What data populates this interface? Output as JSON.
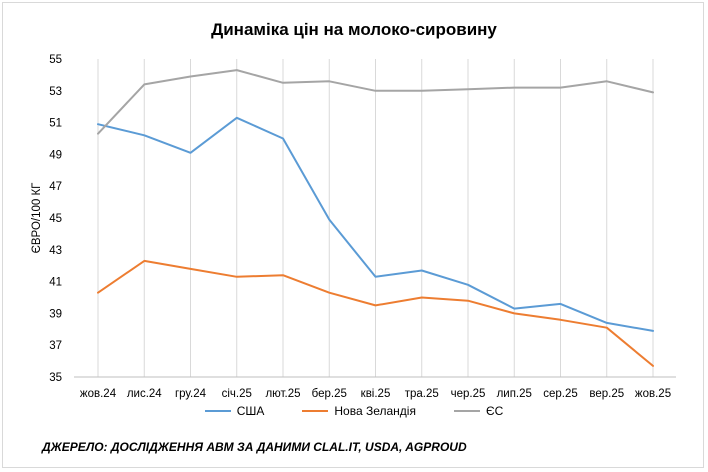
{
  "chart_data": {
    "type": "line",
    "title": "Динаміка цін на молоко-сировину",
    "ylabel": "ЄВРО/100 КГ",
    "xlabel": "",
    "ylim": [
      35,
      55
    ],
    "yticks": [
      "35",
      "37",
      "39",
      "41",
      "43",
      "45",
      "47",
      "49",
      "51",
      "53",
      "55"
    ],
    "categories": [
      "жов.24",
      "лис.24",
      "гру.24",
      "січ.25",
      "лют.25",
      "бер.25",
      "кві.25",
      "тра.25",
      "чер.25",
      "лип.25",
      "сер.25",
      "вер.25",
      "жов.25"
    ],
    "grid": "vertical",
    "legend_position": "bottom",
    "series": [
      {
        "name": "США",
        "color": "#5b9bd5",
        "values": [
          50.9,
          50.2,
          49.1,
          51.3,
          50.0,
          44.9,
          41.3,
          41.7,
          40.8,
          39.3,
          39.6,
          38.4,
          37.9
        ]
      },
      {
        "name": "Нова Зеландія",
        "color": "#ed7d31",
        "values": [
          40.3,
          42.3,
          41.8,
          41.3,
          41.4,
          40.3,
          39.5,
          40.0,
          39.8,
          39.0,
          38.6,
          38.1,
          35.7
        ]
      },
      {
        "name": "ЄС",
        "color": "#a5a5a5",
        "values": [
          50.3,
          53.4,
          53.9,
          54.3,
          53.5,
          53.6,
          53.0,
          53.0,
          53.1,
          53.2,
          53.2,
          53.6,
          52.9
        ]
      }
    ]
  },
  "source_note": "ДЖЕРЕЛО: ДОСЛІДЖЕННЯ АВМ ЗА ДАНИМИ CLAL.IT, USDA, AGPROUD"
}
